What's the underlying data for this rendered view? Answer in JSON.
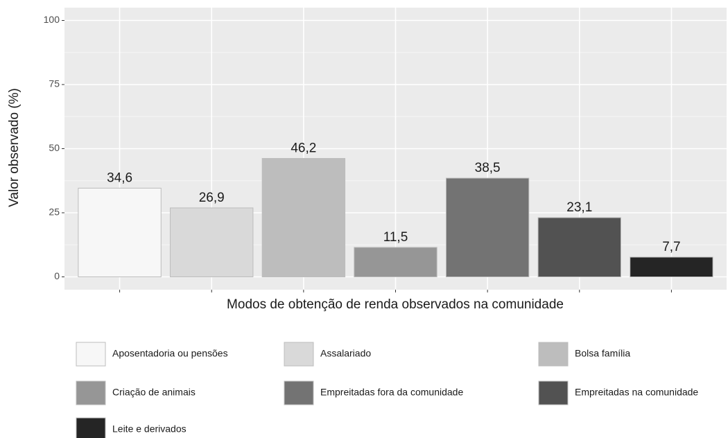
{
  "chart_data": {
    "type": "bar",
    "categories": [
      "Aposentadoria ou pensões",
      "Assalariado",
      "Bolsa família",
      "Criação de animais",
      "Empreitadas fora da comunidade",
      "Empreitadas na comunidade",
      "Leite e derivados"
    ],
    "values": [
      34.6,
      26.9,
      46.2,
      11.5,
      38.5,
      23.1,
      7.7
    ],
    "value_labels": [
      "34,6",
      "26,9",
      "46,2",
      "11,5",
      "38,5",
      "23,1",
      "7,7"
    ],
    "colors": [
      "#f7f7f7",
      "#d9d9d9",
      "#bdbdbd",
      "#969696",
      "#737373",
      "#525252",
      "#252525"
    ],
    "x_label": "Modos de obtenção de renda observados na comunidade",
    "y_label": "Valor observado (%)",
    "ylim": [
      -5,
      105
    ],
    "yticks": [
      0,
      25,
      50,
      75,
      100
    ],
    "grid": true,
    "legend": "bottom"
  }
}
